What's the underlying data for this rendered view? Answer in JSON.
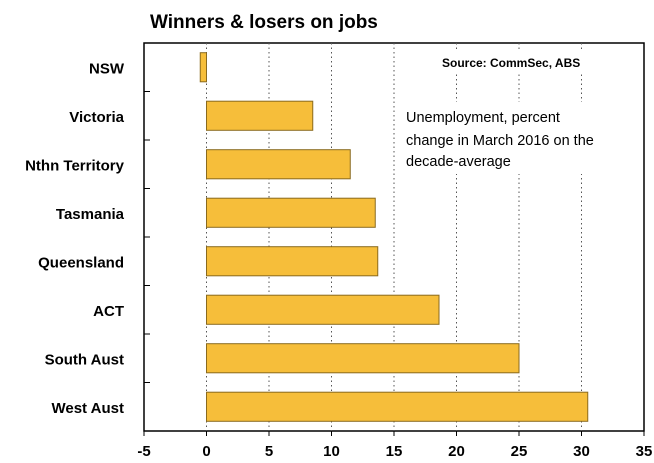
{
  "chart_data": {
    "type": "bar",
    "orientation": "horizontal",
    "title": "Winners & losers on  jobs",
    "source": "Source: CommSec, ABS",
    "annotation": [
      "Unemployment, percent",
      "change in March 2016 on the",
      "decade-average"
    ],
    "categories": [
      "NSW",
      "Victoria",
      "Nthn Territory",
      "Tasmania",
      "Queensland",
      "ACT",
      "South Aust",
      "West Aust"
    ],
    "values": [
      -0.5,
      8.5,
      11.5,
      13.5,
      13.7,
      18.6,
      25.0,
      30.5
    ],
    "xlim": [
      -5,
      35
    ],
    "xticks": [
      -5,
      0,
      5,
      10,
      15,
      20,
      25,
      30,
      35
    ],
    "xlabel": "",
    "ylabel": "",
    "grid": "vertical dotted",
    "bar_color": "#F6BE3A",
    "bar_edge_color": "#8A6A1E"
  }
}
